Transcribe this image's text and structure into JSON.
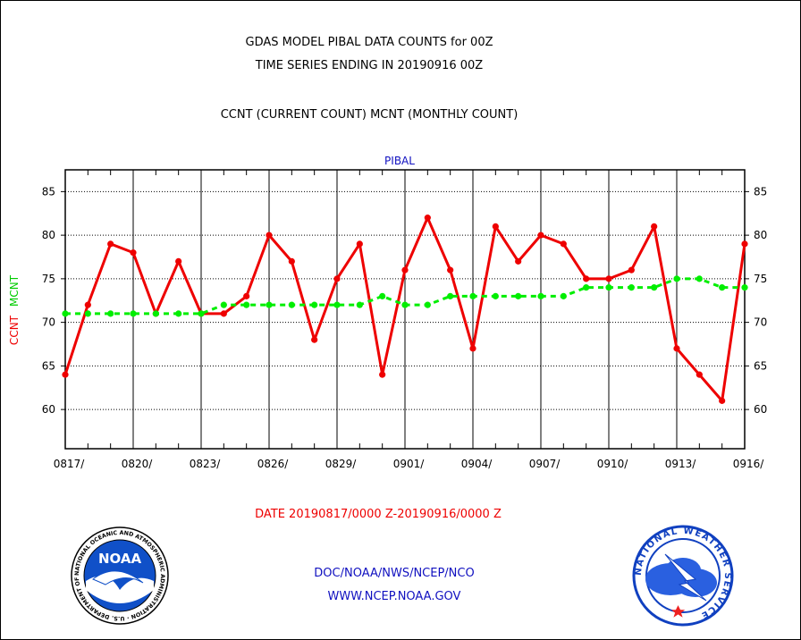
{
  "title_line1": "GDAS MODEL PIBAL DATA COUNTS for 00Z",
  "title_line2": "TIME SERIES ENDING IN 20190916 00Z",
  "legend_text": "CCNT (CURRENT COUNT) MCNT (MONTHLY COUNT)",
  "panel_label": "PIBAL",
  "ylabel_ccnt": "CCNT",
  "ylabel_mcnt": "MCNT",
  "date_range": "DATE 20190817/0000 Z-20190916/0000 Z",
  "credit_line1": "DOC/NOAA/NWS/NCEP/NCO",
  "credit_line2": "WWW.NCEP.NOAA.GOV",
  "noaa_logo": {
    "center_text": "NOAA",
    "ring_text": "NATIONAL OCEANIC AND ATMOSPHERIC ADMINISTRATION · U.S. DEPARTMENT OF COMMERCE"
  },
  "nws_logo": {
    "ring_text": "NATIONAL WEATHER SERVICE"
  },
  "colors": {
    "ccnt": "#ee0000",
    "mcnt": "#00ee00",
    "blue_text": "#1010c0",
    "red_text": "#ee0000"
  },
  "chart_data": {
    "type": "line",
    "ylim": [
      55.5,
      87.5
    ],
    "yticks": [
      60,
      65,
      70,
      75,
      80,
      85
    ],
    "xtick_labels": [
      "0817/",
      "0820/",
      "0823/",
      "0826/",
      "0829/",
      "0901/",
      "0904/",
      "0907/",
      "0910/",
      "0913/",
      "0916/"
    ],
    "x": [
      "0817",
      "0818",
      "0819",
      "0820",
      "0821",
      "0822",
      "0823",
      "0824",
      "0825",
      "0826",
      "0827",
      "0828",
      "0829",
      "0830",
      "0831",
      "0901",
      "0902",
      "0903",
      "0904",
      "0905",
      "0906",
      "0907",
      "0908",
      "0909",
      "0910",
      "0911",
      "0912",
      "0913",
      "0914",
      "0915",
      "0916"
    ],
    "series": [
      {
        "name": "CCNT",
        "color": "#ee0000",
        "style": "solid",
        "values": [
          64,
          72,
          79,
          78,
          71,
          77,
          71,
          71,
          73,
          80,
          77,
          68,
          75,
          79,
          64,
          76,
          82,
          76,
          67,
          81,
          77,
          80,
          79,
          75,
          75,
          76,
          81,
          67,
          64,
          61,
          79
        ]
      },
      {
        "name": "MCNT",
        "color": "#00ee00",
        "style": "dashed",
        "values": [
          71,
          71,
          71,
          71,
          71,
          71,
          71,
          72,
          72,
          72,
          72,
          72,
          72,
          72,
          73,
          72,
          72,
          73,
          73,
          73,
          73,
          73,
          73,
          74,
          74,
          74,
          74,
          75,
          75,
          74,
          74
        ]
      }
    ],
    "grid": true
  }
}
